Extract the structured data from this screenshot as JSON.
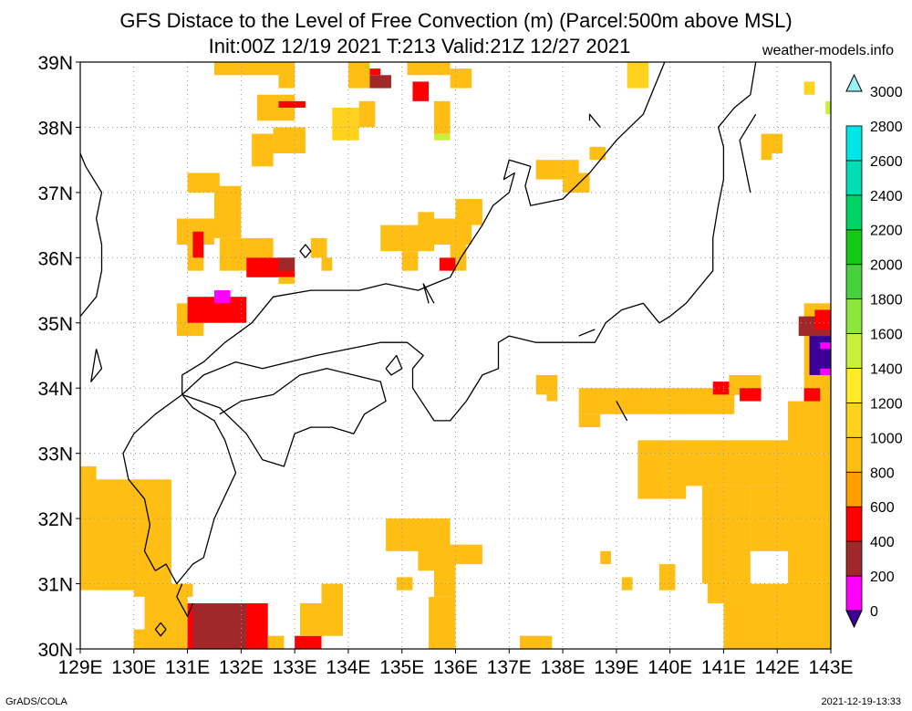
{
  "title": "GFS Distace to the Level of Free Convection (m) (Parcel:500m above MSL)",
  "subtitle": "Init:00Z 12/19 2021 T:213 Valid:21Z 12/27 2021",
  "site": "weather-models.info",
  "footer_left": "GrADS/COLA",
  "footer_right": "2021-12-19-13:33",
  "axes": {
    "lon_range": [
      129,
      143
    ],
    "lat_range": [
      30,
      39
    ],
    "lon_labels": [
      "129E",
      "130E",
      "131E",
      "132E",
      "133E",
      "134E",
      "135E",
      "136E",
      "137E",
      "138E",
      "139E",
      "140E",
      "141E",
      "142E",
      "143E"
    ],
    "lat_labels": [
      "30N",
      "31N",
      "32N",
      "33N",
      "34N",
      "35N",
      "36N",
      "37N",
      "38N",
      "39N"
    ]
  },
  "colorbar": {
    "levels": [
      "0",
      "200",
      "400",
      "600",
      "800",
      "1000",
      "1200",
      "1400",
      "1600",
      "1800",
      "2000",
      "2200",
      "2400",
      "2600",
      "2800",
      "3000"
    ],
    "colors": [
      "#3c0096",
      "#ff00ff",
      "#a0282a",
      "#ff0000",
      "#ffa000",
      "#ffbe14",
      "#ffd21e",
      "#ffeb28",
      "#c8f03c",
      "#8ce63c",
      "#46d23c",
      "#14c814",
      "#00d264",
      "#00dcb4",
      "#00e6e6",
      "#96f0f0"
    ]
  },
  "field_cells": [
    [
      131.5,
      38.8,
      132.7,
      39.0,
      "#ffbe14"
    ],
    [
      132.7,
      38.6,
      133.0,
      39.0,
      "#ffbe14"
    ],
    [
      134.0,
      38.6,
      134.4,
      39.0,
      "#ffbe14"
    ],
    [
      134.4,
      38.8,
      134.6,
      38.9,
      "#ff0000"
    ],
    [
      134.4,
      38.6,
      134.8,
      38.8,
      "#a0282a"
    ],
    [
      135.1,
      38.8,
      135.9,
      39.0,
      "#ffbe14"
    ],
    [
      135.9,
      38.6,
      136.3,
      38.9,
      "#ffbe14"
    ],
    [
      135.2,
      38.4,
      135.5,
      38.7,
      "#ff0000"
    ],
    [
      132.3,
      38.1,
      133.0,
      38.5,
      "#ffbe14"
    ],
    [
      132.7,
      38.3,
      133.2,
      38.4,
      "#ff0000"
    ],
    [
      133.7,
      37.8,
      134.2,
      38.3,
      "#ffd21e"
    ],
    [
      134.2,
      38.0,
      134.5,
      38.4,
      "#ffbe14"
    ],
    [
      135.6,
      37.9,
      135.9,
      38.4,
      "#ffbe14"
    ],
    [
      135.6,
      37.8,
      135.9,
      37.9,
      "#c8f03c"
    ],
    [
      132.6,
      37.6,
      133.2,
      38.0,
      "#ffbe14"
    ],
    [
      132.2,
      37.4,
      132.6,
      37.9,
      "#ffbe14"
    ],
    [
      131.0,
      37.0,
      131.6,
      37.3,
      "#ffbe14"
    ],
    [
      131.5,
      36.3,
      132.0,
      37.1,
      "#ffbe14"
    ],
    [
      130.8,
      36.2,
      131.5,
      36.6,
      "#ffbe14"
    ],
    [
      131.0,
      35.8,
      131.3,
      36.3,
      "#ffbe14"
    ],
    [
      131.1,
      36.0,
      131.3,
      36.4,
      "#ff0000"
    ],
    [
      131.6,
      35.8,
      132.6,
      36.3,
      "#ffbe14"
    ],
    [
      132.1,
      35.7,
      133.0,
      36.0,
      "#ff0000"
    ],
    [
      132.7,
      35.8,
      133.0,
      36.0,
      "#a0282a"
    ],
    [
      133.5,
      35.8,
      133.7,
      36.0,
      "#ffbe14"
    ],
    [
      133.3,
      36.0,
      133.6,
      36.3,
      "#ffbe14"
    ],
    [
      134.6,
      36.1,
      135.6,
      36.5,
      "#ffbe14"
    ],
    [
      135.0,
      35.8,
      135.3,
      36.1,
      "#ffbe14"
    ],
    [
      135.3,
      36.4,
      135.6,
      36.7,
      "#ffbe14"
    ],
    [
      135.6,
      36.2,
      136.3,
      36.6,
      "#ffbe14"
    ],
    [
      135.9,
      35.8,
      136.2,
      36.2,
      "#ffbe14"
    ],
    [
      136.0,
      36.5,
      136.5,
      36.9,
      "#ffbe14"
    ],
    [
      135.7,
      35.8,
      136.0,
      36.0,
      "#ff0000"
    ],
    [
      130.8,
      34.8,
      131.3,
      35.3,
      "#ffbe14"
    ],
    [
      131.0,
      35.0,
      132.1,
      35.4,
      "#ff0000"
    ],
    [
      131.5,
      35.3,
      131.8,
      35.5,
      "#ff00ff"
    ],
    [
      132.7,
      35.6,
      133.0,
      35.7,
      "#ffbe14"
    ],
    [
      137.5,
      37.2,
      138.3,
      37.5,
      "#ffbe14"
    ],
    [
      138.0,
      37.0,
      138.5,
      37.3,
      "#ffbe14"
    ],
    [
      138.5,
      37.5,
      138.8,
      37.7,
      "#ffbe14"
    ],
    [
      139.2,
      38.6,
      139.6,
      39.0,
      "#ffd21e"
    ],
    [
      142.5,
      38.5,
      142.7,
      38.7,
      "#ffd21e"
    ],
    [
      142.9,
      38.2,
      143.0,
      38.4,
      "#c8f03c"
    ],
    [
      141.7,
      37.6,
      142.1,
      37.9,
      "#ffbe14"
    ],
    [
      141.7,
      37.5,
      141.9,
      37.6,
      "#ffbe14"
    ],
    [
      137.5,
      33.9,
      137.9,
      34.2,
      "#ffbe14"
    ],
    [
      137.7,
      33.8,
      137.9,
      33.9,
      "#ffbe14"
    ],
    [
      138.3,
      33.6,
      141.2,
      34.0,
      "#ffbe14"
    ],
    [
      138.3,
      33.4,
      138.7,
      33.6,
      "#ffbe14"
    ],
    [
      140.8,
      33.9,
      141.3,
      34.1,
      "#ff0000"
    ],
    [
      141.1,
      33.9,
      141.7,
      34.2,
      "#ffbe14"
    ],
    [
      141.3,
      33.8,
      141.7,
      34.0,
      "#ff0000"
    ],
    [
      142.2,
      33.0,
      143.0,
      33.8,
      "#ffbe14"
    ],
    [
      142.5,
      33.7,
      143.0,
      35.3,
      "#ffbe14"
    ],
    [
      142.4,
      34.8,
      143.0,
      35.1,
      "#a0282a"
    ],
    [
      142.7,
      34.9,
      143.0,
      35.2,
      "#ff0000"
    ],
    [
      142.6,
      34.2,
      143.0,
      34.8,
      "#3c0096"
    ],
    [
      142.8,
      34.2,
      143.0,
      34.3,
      "#ff00ff"
    ],
    [
      142.8,
      34.6,
      143.0,
      34.7,
      "#ff00ff"
    ],
    [
      142.5,
      33.8,
      142.8,
      34.0,
      "#ff0000"
    ],
    [
      129.0,
      30.9,
      130.7,
      32.6,
      "#ffbe14"
    ],
    [
      129.0,
      32.5,
      129.3,
      32.8,
      "#ffbe14"
    ],
    [
      129.0,
      30.3,
      129.3,
      30.9,
      "#ffffff"
    ],
    [
      130.0,
      30.8,
      131.1,
      31.0,
      "#ffbe14"
    ],
    [
      130.0,
      30.0,
      131.0,
      30.3,
      "#ffbe14"
    ],
    [
      130.2,
      30.3,
      131.0,
      30.9,
      "#ffbe14"
    ],
    [
      131.0,
      30.0,
      132.5,
      30.7,
      "#ff0000"
    ],
    [
      131.1,
      30.0,
      132.1,
      30.7,
      "#a0282a"
    ],
    [
      132.5,
      30.0,
      132.8,
      30.2,
      "#ffbe14"
    ],
    [
      133.0,
      30.0,
      133.5,
      30.2,
      "#ff0000"
    ],
    [
      133.1,
      30.2,
      133.9,
      30.7,
      "#ffbe14"
    ],
    [
      133.5,
      30.7,
      133.9,
      31.0,
      "#ffbe14"
    ],
    [
      134.7,
      31.5,
      135.9,
      32.0,
      "#ffbe14"
    ],
    [
      135.3,
      31.2,
      136.0,
      31.6,
      "#ffbe14"
    ],
    [
      135.6,
      30.8,
      136.0,
      31.3,
      "#ffbe14"
    ],
    [
      134.9,
      30.9,
      135.2,
      31.1,
      "#ffbe14"
    ],
    [
      136.0,
      31.3,
      136.5,
      31.6,
      "#ffbe14"
    ],
    [
      135.5,
      30.0,
      136.0,
      30.8,
      "#ffbe14"
    ],
    [
      137.2,
      30.0,
      137.8,
      30.2,
      "#ffbe14"
    ],
    [
      139.1,
      30.9,
      139.3,
      31.1,
      "#ffbe14"
    ],
    [
      138.7,
      31.3,
      138.9,
      31.5,
      "#ffbe14"
    ],
    [
      139.4,
      32.3,
      140.3,
      33.2,
      "#ffbe14"
    ],
    [
      140.0,
      32.5,
      142.2,
      33.2,
      "#ffbe14"
    ],
    [
      140.6,
      31.0,
      141.5,
      32.5,
      "#ffbe14"
    ],
    [
      141.5,
      31.5,
      142.2,
      32.5,
      "#ffbe14"
    ],
    [
      141.0,
      30.0,
      143.0,
      31.0,
      "#ffbe14"
    ],
    [
      142.2,
      30.0,
      143.0,
      33.0,
      "#ffbe14"
    ],
    [
      139.8,
      30.9,
      140.1,
      31.3,
      "#ffbe14"
    ],
    [
      140.7,
      30.7,
      141.1,
      31.2,
      "#ffbe14"
    ]
  ],
  "coastlines": [
    [
      [
        129.0,
        35.1
      ],
      [
        129.3,
        35.4
      ],
      [
        129.4,
        35.8
      ],
      [
        129.4,
        36.2
      ],
      [
        129.3,
        36.6
      ],
      [
        129.4,
        37.0
      ],
      [
        129.1,
        37.4
      ],
      [
        129.0,
        37.6
      ]
    ],
    [
      [
        130.4,
        31.2
      ],
      [
        130.2,
        31.5
      ],
      [
        130.3,
        31.9
      ],
      [
        130.2,
        32.3
      ],
      [
        129.9,
        32.6
      ],
      [
        129.8,
        33.0
      ],
      [
        130.0,
        33.3
      ],
      [
        130.4,
        33.6
      ],
      [
        130.9,
        33.9
      ],
      [
        131.1,
        33.7
      ],
      [
        131.5,
        33.5
      ],
      [
        131.7,
        33.2
      ],
      [
        131.9,
        32.7
      ],
      [
        131.5,
        32.0
      ],
      [
        131.3,
        31.4
      ],
      [
        131.1,
        31.3
      ],
      [
        130.8,
        31.0
      ],
      [
        130.6,
        31.3
      ],
      [
        130.4,
        31.2
      ]
    ],
    [
      [
        130.9,
        33.9
      ],
      [
        131.3,
        34.2
      ],
      [
        131.9,
        34.4
      ],
      [
        132.4,
        34.3
      ],
      [
        132.9,
        34.4
      ],
      [
        133.4,
        34.5
      ],
      [
        134.0,
        34.6
      ],
      [
        134.6,
        34.7
      ],
      [
        135.1,
        34.7
      ],
      [
        135.4,
        34.5
      ],
      [
        135.2,
        34.3
      ],
      [
        135.2,
        34.0
      ],
      [
        135.6,
        33.5
      ],
      [
        135.9,
        33.5
      ],
      [
        136.2,
        33.8
      ],
      [
        136.5,
        34.2
      ],
      [
        136.8,
        34.3
      ],
      [
        136.8,
        34.7
      ],
      [
        137.0,
        34.8
      ],
      [
        137.5,
        34.7
      ],
      [
        138.0,
        34.7
      ],
      [
        138.6,
        34.7
      ],
      [
        138.8,
        35.0
      ],
      [
        139.1,
        35.2
      ],
      [
        139.5,
        35.3
      ],
      [
        139.8,
        35.0
      ],
      [
        140.0,
        35.1
      ],
      [
        140.3,
        35.3
      ],
      [
        140.6,
        35.6
      ],
      [
        140.8,
        35.8
      ],
      [
        140.8,
        36.3
      ],
      [
        140.9,
        36.8
      ],
      [
        141.0,
        37.2
      ],
      [
        141.0,
        37.7
      ],
      [
        140.9,
        38.0
      ],
      [
        141.2,
        38.3
      ],
      [
        141.5,
        38.5
      ],
      [
        141.6,
        39.0
      ]
    ],
    [
      [
        135.9,
        35.7
      ],
      [
        135.6,
        35.6
      ],
      [
        135.3,
        35.5
      ],
      [
        134.7,
        35.6
      ],
      [
        134.2,
        35.5
      ],
      [
        133.3,
        35.5
      ],
      [
        132.6,
        35.4
      ],
      [
        132.2,
        35.0
      ],
      [
        131.7,
        34.7
      ],
      [
        131.3,
        34.4
      ],
      [
        130.9,
        34.2
      ],
      [
        130.9,
        33.9
      ]
    ],
    [
      [
        135.9,
        35.7
      ],
      [
        136.1,
        36.0
      ],
      [
        136.5,
        36.5
      ],
      [
        136.7,
        36.8
      ],
      [
        137.0,
        37.0
      ],
      [
        137.1,
        37.3
      ],
      [
        136.9,
        37.2
      ],
      [
        137.0,
        37.5
      ],
      [
        137.4,
        37.4
      ],
      [
        137.3,
        37.1
      ],
      [
        137.4,
        36.8
      ],
      [
        138.0,
        36.9
      ],
      [
        138.5,
        37.3
      ],
      [
        139.0,
        37.8
      ],
      [
        139.5,
        38.2
      ],
      [
        139.7,
        38.6
      ],
      [
        139.9,
        39.0
      ]
    ],
    [
      [
        130.9,
        33.9
      ],
      [
        131.6,
        33.7
      ],
      [
        132.1,
        33.3
      ],
      [
        132.4,
        32.9
      ],
      [
        132.8,
        32.8
      ],
      [
        133.0,
        33.3
      ],
      [
        133.3,
        33.4
      ],
      [
        133.7,
        33.4
      ],
      [
        134.1,
        33.3
      ],
      [
        134.3,
        33.6
      ],
      [
        134.7,
        33.8
      ],
      [
        134.6,
        34.1
      ],
      [
        134.1,
        34.2
      ],
      [
        133.6,
        34.3
      ],
      [
        133.1,
        34.2
      ],
      [
        132.6,
        33.9
      ],
      [
        132.0,
        33.8
      ],
      [
        131.6,
        33.6
      ]
    ],
    [
      [
        134.7,
        34.3
      ],
      [
        134.9,
        34.5
      ],
      [
        135.0,
        34.3
      ],
      [
        134.8,
        34.2
      ],
      [
        134.7,
        34.3
      ]
    ],
    [
      [
        135.6,
        35.3
      ],
      [
        135.4,
        35.6
      ],
      [
        135.5,
        35.3
      ]
    ],
    [
      [
        138.3,
        34.8
      ],
      [
        138.6,
        34.9
      ]
    ],
    [
      [
        129.3,
        34.6
      ],
      [
        129.4,
        34.3
      ],
      [
        129.2,
        34.1
      ],
      [
        129.3,
        34.6
      ]
    ],
    [
      [
        130.9,
        31.0
      ],
      [
        130.8,
        30.8
      ],
      [
        131.0,
        30.5
      ],
      [
        131.1,
        30.7
      ]
    ],
    [
      [
        130.6,
        30.3
      ],
      [
        130.5,
        30.4
      ],
      [
        130.4,
        30.3
      ],
      [
        130.5,
        30.2
      ],
      [
        130.6,
        30.3
      ]
    ],
    [
      [
        133.2,
        36.0
      ],
      [
        133.3,
        36.1
      ],
      [
        133.2,
        36.2
      ],
      [
        133.1,
        36.1
      ],
      [
        133.2,
        36.0
      ]
    ],
    [
      [
        141.5,
        37.0
      ],
      [
        141.3,
        37.8
      ],
      [
        141.6,
        38.2
      ]
    ],
    [
      [
        138.7,
        38.0
      ],
      [
        138.5,
        38.2
      ],
      [
        138.5,
        38.1
      ]
    ],
    [
      [
        139.0,
        33.8
      ],
      [
        139.2,
        33.5
      ]
    ]
  ]
}
